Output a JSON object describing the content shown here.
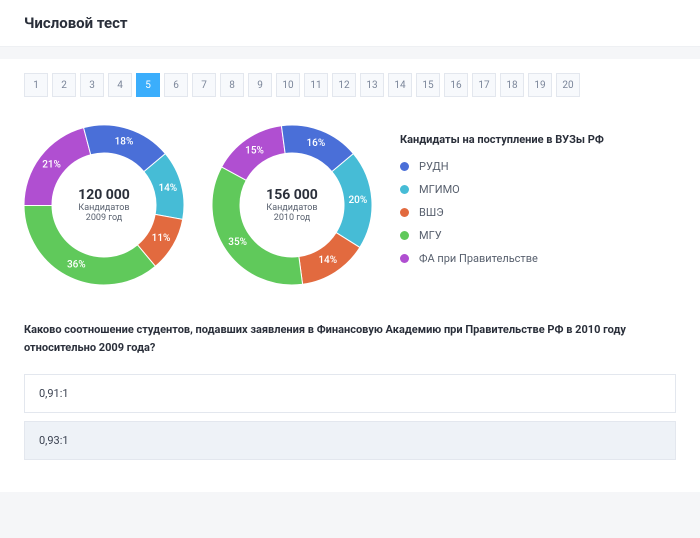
{
  "header": {
    "title": "Числовой тест"
  },
  "pager": {
    "total": 20,
    "active": 5
  },
  "legend": {
    "title": "Кандидаты на поступление в ВУЗы РФ",
    "items": [
      {
        "label": "РУДН",
        "color": "#4a6fd8"
      },
      {
        "label": "МГИМО",
        "color": "#46bcd6"
      },
      {
        "label": "ВШЭ",
        "color": "#e26a3f"
      },
      {
        "label": "МГУ",
        "color": "#60c95b"
      },
      {
        "label": "ФА при Правительстве",
        "color": "#b04fd1"
      }
    ]
  },
  "donuts": [
    {
      "total": "120 000",
      "sub1": "Кандидатов",
      "sub2": "2009 год",
      "slices": [
        {
          "pct": 14,
          "color": "#46bcd6"
        },
        {
          "pct": 11,
          "color": "#e26a3f"
        },
        {
          "pct": 36,
          "color": "#60c95b"
        },
        {
          "pct": 21,
          "color": "#b04fd1"
        },
        {
          "pct": 18,
          "color": "#4a6fd8"
        }
      ]
    },
    {
      "total": "156 000",
      "sub1": "Кандидатов",
      "sub2": "2010 год",
      "slices": [
        {
          "pct": 20,
          "color": "#46bcd6"
        },
        {
          "pct": 14,
          "color": "#e26a3f"
        },
        {
          "pct": 35,
          "color": "#60c95b"
        },
        {
          "pct": 15,
          "color": "#b04fd1"
        },
        {
          "pct": 16,
          "color": "#4a6fd8"
        }
      ]
    }
  ],
  "donut_style": {
    "size": 160,
    "thickness": 28,
    "start_angle_deg": -40
  },
  "question": "Каково соотношение студентов, подавших заявления в Финансовую Академию при Правительстве РФ в 2010 году относительно 2009 года?",
  "answers": [
    {
      "label": "0,91:1",
      "selected": false
    },
    {
      "label": "0,93:1",
      "selected": true
    }
  ]
}
